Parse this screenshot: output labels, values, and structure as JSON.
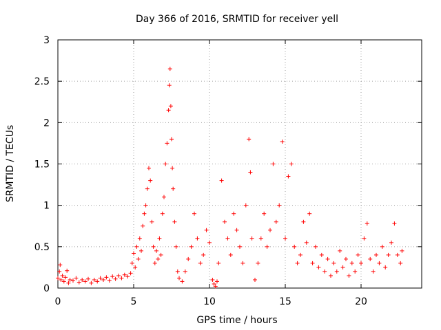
{
  "chart_data": {
    "type": "scatter",
    "title": "Day 366 of 2016, SRMTID for receiver yell",
    "xlabel": "GPS time / hours",
    "ylabel": "SRMTID / TECUs",
    "xlim": [
      0,
      24
    ],
    "ylim": [
      0,
      3
    ],
    "x_ticks": [
      0,
      5,
      10,
      15,
      20
    ],
    "x_tick_labels": [
      "0",
      "5",
      "10",
      "15",
      "20"
    ],
    "y_ticks": [
      0,
      0.5,
      1,
      1.5,
      2,
      2.5,
      3
    ],
    "y_tick_labels": [
      "0",
      "0.5",
      "1",
      "1.5",
      "2",
      "2.5",
      "3"
    ],
    "grid": true,
    "marker": "+",
    "series_color": "#ff0000",
    "series": [
      {
        "name": "SRMTID",
        "points": [
          [
            0.0,
            0.12
          ],
          [
            0.1,
            0.2
          ],
          [
            0.15,
            0.28
          ],
          [
            0.2,
            0.1
          ],
          [
            0.3,
            0.15
          ],
          [
            0.4,
            0.08
          ],
          [
            0.5,
            0.13
          ],
          [
            0.6,
            0.21
          ],
          [
            0.7,
            0.06
          ],
          [
            0.8,
            0.1
          ],
          [
            1.0,
            0.09
          ],
          [
            1.2,
            0.12
          ],
          [
            1.4,
            0.07
          ],
          [
            1.6,
            0.1
          ],
          [
            1.8,
            0.08
          ],
          [
            2.0,
            0.11
          ],
          [
            2.2,
            0.06
          ],
          [
            2.4,
            0.1
          ],
          [
            2.6,
            0.08
          ],
          [
            2.8,
            0.12
          ],
          [
            3.0,
            0.1
          ],
          [
            3.2,
            0.13
          ],
          [
            3.4,
            0.09
          ],
          [
            3.6,
            0.14
          ],
          [
            3.8,
            0.11
          ],
          [
            4.0,
            0.15
          ],
          [
            4.2,
            0.12
          ],
          [
            4.4,
            0.16
          ],
          [
            4.6,
            0.14
          ],
          [
            4.8,
            0.18
          ],
          [
            4.9,
            0.3
          ],
          [
            5.0,
            0.42
          ],
          [
            5.1,
            0.25
          ],
          [
            5.2,
            0.5
          ],
          [
            5.3,
            0.35
          ],
          [
            5.4,
            0.6
          ],
          [
            5.5,
            0.45
          ],
          [
            5.6,
            0.75
          ],
          [
            5.7,
            0.9
          ],
          [
            5.8,
            1.0
          ],
          [
            5.9,
            1.2
          ],
          [
            6.0,
            1.45
          ],
          [
            6.1,
            1.3
          ],
          [
            6.2,
            0.8
          ],
          [
            6.3,
            0.5
          ],
          [
            6.4,
            0.3
          ],
          [
            6.5,
            0.45
          ],
          [
            6.6,
            0.35
          ],
          [
            6.7,
            0.6
          ],
          [
            6.8,
            0.4
          ],
          [
            6.9,
            0.9
          ],
          [
            7.0,
            1.1
          ],
          [
            7.1,
            1.5
          ],
          [
            7.2,
            1.75
          ],
          [
            7.3,
            2.15
          ],
          [
            7.35,
            2.45
          ],
          [
            7.4,
            2.65
          ],
          [
            7.45,
            2.2
          ],
          [
            7.5,
            1.8
          ],
          [
            7.55,
            1.45
          ],
          [
            7.6,
            1.2
          ],
          [
            7.7,
            0.8
          ],
          [
            7.8,
            0.5
          ],
          [
            7.9,
            0.2
          ],
          [
            8.0,
            0.12
          ],
          [
            8.2,
            0.08
          ],
          [
            8.4,
            0.2
          ],
          [
            8.6,
            0.35
          ],
          [
            8.8,
            0.5
          ],
          [
            9.0,
            0.9
          ],
          [
            9.2,
            0.6
          ],
          [
            9.4,
            0.3
          ],
          [
            9.6,
            0.4
          ],
          [
            9.8,
            0.7
          ],
          [
            10.0,
            0.55
          ],
          [
            10.2,
            0.1
          ],
          [
            10.3,
            0.05
          ],
          [
            10.4,
            0.02
          ],
          [
            10.5,
            0.08
          ],
          [
            10.6,
            0.3
          ],
          [
            10.8,
            1.3
          ],
          [
            11.0,
            0.8
          ],
          [
            11.2,
            0.6
          ],
          [
            11.4,
            0.4
          ],
          [
            11.6,
            0.9
          ],
          [
            11.8,
            0.7
          ],
          [
            12.0,
            0.5
          ],
          [
            12.2,
            0.3
          ],
          [
            12.4,
            1.0
          ],
          [
            12.6,
            1.8
          ],
          [
            12.7,
            1.4
          ],
          [
            12.8,
            0.6
          ],
          [
            13.0,
            0.1
          ],
          [
            13.2,
            0.3
          ],
          [
            13.4,
            0.6
          ],
          [
            13.6,
            0.9
          ],
          [
            13.8,
            0.5
          ],
          [
            14.0,
            0.7
          ],
          [
            14.2,
            1.5
          ],
          [
            14.4,
            0.8
          ],
          [
            14.6,
            1.0
          ],
          [
            14.8,
            1.77
          ],
          [
            15.0,
            0.6
          ],
          [
            15.2,
            1.35
          ],
          [
            15.4,
            1.5
          ],
          [
            15.6,
            0.5
          ],
          [
            15.8,
            0.3
          ],
          [
            16.0,
            0.4
          ],
          [
            16.2,
            0.8
          ],
          [
            16.4,
            0.55
          ],
          [
            16.6,
            0.9
          ],
          [
            16.8,
            0.3
          ],
          [
            17.0,
            0.5
          ],
          [
            17.2,
            0.25
          ],
          [
            17.4,
            0.4
          ],
          [
            17.6,
            0.2
          ],
          [
            17.8,
            0.35
          ],
          [
            18.0,
            0.15
          ],
          [
            18.2,
            0.3
          ],
          [
            18.4,
            0.2
          ],
          [
            18.6,
            0.45
          ],
          [
            18.8,
            0.25
          ],
          [
            19.0,
            0.35
          ],
          [
            19.2,
            0.15
          ],
          [
            19.4,
            0.3
          ],
          [
            19.6,
            0.2
          ],
          [
            19.8,
            0.4
          ],
          [
            20.0,
            0.3
          ],
          [
            20.2,
            0.6
          ],
          [
            20.4,
            0.78
          ],
          [
            20.6,
            0.35
          ],
          [
            20.8,
            0.2
          ],
          [
            21.0,
            0.4
          ],
          [
            21.2,
            0.3
          ],
          [
            21.4,
            0.5
          ],
          [
            21.6,
            0.25
          ],
          [
            21.8,
            0.4
          ],
          [
            22.0,
            0.55
          ],
          [
            22.2,
            0.78
          ],
          [
            22.4,
            0.4
          ],
          [
            22.6,
            0.3
          ],
          [
            22.7,
            0.45
          ]
        ]
      }
    ]
  }
}
